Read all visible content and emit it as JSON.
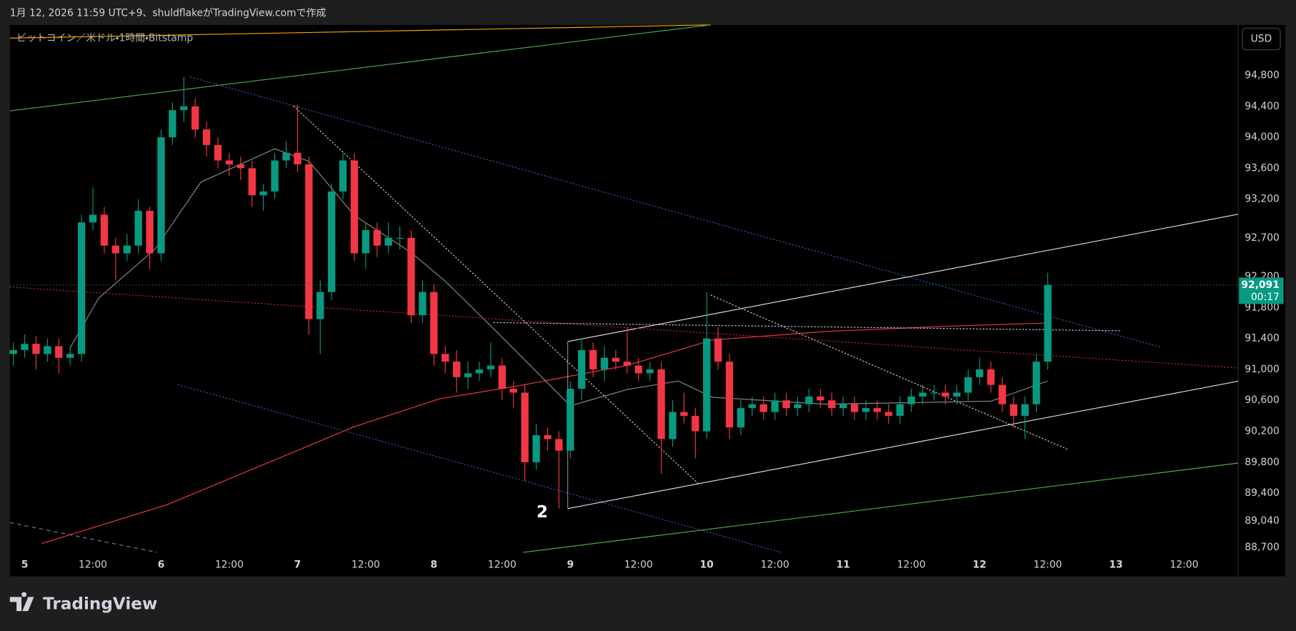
{
  "header": "1月 12, 2026 11:59 UTC+9、shuldflakeがTradingView.comで作成",
  "brand": "TradingView",
  "chart_data": {
    "type": "candlestick",
    "title": "ビットコイン／米ドル・1時間・Bitstamp",
    "currency": "USD",
    "annotation": "2",
    "last_price_label": "92,091",
    "countdown": "00:17",
    "up_color": "#089981",
    "down_color": "#f23645",
    "xlim": [
      -2.6,
      213.5
    ],
    "ylim": [
      88326,
      95452
    ],
    "xticks": [
      {
        "value": 0,
        "label": "5"
      },
      {
        "value": 12,
        "label": "12:00"
      },
      {
        "value": 24,
        "label": "6"
      },
      {
        "value": 36,
        "label": "12:00"
      },
      {
        "value": 48,
        "label": "7"
      },
      {
        "value": 60,
        "label": "12:00"
      },
      {
        "value": 72,
        "label": "8"
      },
      {
        "value": 84,
        "label": "12:00"
      },
      {
        "value": 96,
        "label": "9"
      },
      {
        "value": 108,
        "label": "12:00"
      },
      {
        "value": 120,
        "label": "10"
      },
      {
        "value": 132,
        "label": "12:00"
      },
      {
        "value": 144,
        "label": "11"
      },
      {
        "value": 156,
        "label": "12:00"
      },
      {
        "value": 168,
        "label": "12"
      },
      {
        "value": 180,
        "label": "12:00"
      },
      {
        "value": 192,
        "label": "13"
      },
      {
        "value": 204,
        "label": "12:00"
      }
    ],
    "yticks": [
      {
        "value": 94800,
        "label": "94,800"
      },
      {
        "value": 94400,
        "label": "94,400"
      },
      {
        "value": 94000,
        "label": "94,000"
      },
      {
        "value": 93600,
        "label": "93,600"
      },
      {
        "value": 93200,
        "label": "93,200"
      },
      {
        "value": 92700,
        "label": "92,700"
      },
      {
        "value": 92200,
        "label": "92,200"
      },
      {
        "value": 91800,
        "label": "91,800"
      },
      {
        "value": 91400,
        "label": "91,400"
      },
      {
        "value": 91000,
        "label": "91,000"
      },
      {
        "value": 90600,
        "label": "90,600"
      },
      {
        "value": 90200,
        "label": "90,200"
      },
      {
        "value": 89800,
        "label": "89,800"
      },
      {
        "value": 89400,
        "label": "89,400"
      },
      {
        "value": 89040,
        "label": "89,040"
      },
      {
        "value": 88700,
        "label": "88,700"
      }
    ],
    "x": [
      -2,
      0,
      2,
      4,
      6,
      8,
      10,
      12,
      14,
      16,
      18,
      20,
      22,
      24,
      26,
      28,
      30,
      32,
      34,
      36,
      38,
      40,
      42,
      44,
      46,
      48,
      50,
      52,
      54,
      56,
      58,
      60,
      62,
      64,
      66,
      68,
      70,
      72,
      74,
      76,
      78,
      80,
      82,
      84,
      86,
      88,
      90,
      92,
      94,
      96,
      98,
      100,
      102,
      104,
      106,
      108,
      110,
      112,
      114,
      116,
      118,
      120,
      122,
      124,
      126,
      128,
      130,
      132,
      134,
      136,
      138,
      140,
      142,
      144,
      146,
      148,
      150,
      152,
      154,
      156,
      158,
      160,
      162,
      164,
      166,
      168,
      170,
      172,
      174,
      176,
      178,
      180
    ],
    "open": [
      91200,
      91250,
      91330,
      91200,
      91300,
      91150,
      91200,
      92900,
      93000,
      92600,
      92500,
      92600,
      93050,
      92500,
      94000,
      94350,
      94400,
      94100,
      93900,
      93700,
      93650,
      93600,
      93250,
      93300,
      93700,
      93800,
      93650,
      91650,
      92000,
      93300,
      93700,
      92500,
      92800,
      92600,
      92700,
      92700,
      91700,
      92000,
      91200,
      91100,
      90900,
      90950,
      91000,
      91050,
      90750,
      90700,
      89800,
      90150,
      90100,
      89950,
      90750,
      91250,
      91000,
      91150,
      91100,
      91050,
      90950,
      91000,
      90100,
      90450,
      90400,
      90200,
      91400,
      91100,
      90250,
      90500,
      90550,
      90450,
      90600,
      90500,
      90550,
      90650,
      90600,
      90500,
      90550,
      90450,
      90500,
      90450,
      90400,
      90550,
      90650,
      90700,
      90700,
      90650,
      90700,
      90900,
      91000,
      90800,
      90550,
      90400,
      90550,
      91100
    ],
    "high": [
      91350,
      91450,
      91430,
      91400,
      91400,
      91300,
      93000,
      93350,
      93100,
      92700,
      92750,
      93200,
      93100,
      94100,
      94450,
      94780,
      94500,
      94200,
      94000,
      93800,
      93750,
      93700,
      93400,
      93800,
      93950,
      94420,
      93750,
      92150,
      93400,
      93800,
      93800,
      92900,
      92900,
      92900,
      92850,
      92800,
      92150,
      92100,
      91300,
      91250,
      91100,
      91100,
      91350,
      91150,
      90850,
      90800,
      90300,
      90250,
      90200,
      90850,
      91400,
      91350,
      91300,
      91250,
      91550,
      91150,
      91100,
      91100,
      90600,
      90700,
      90500,
      92000,
      91550,
      91200,
      90600,
      90650,
      90650,
      90700,
      90700,
      90650,
      90750,
      90750,
      90700,
      90650,
      90650,
      90600,
      90600,
      90550,
      90650,
      90750,
      90800,
      90800,
      90800,
      90800,
      91000,
      91150,
      91100,
      90900,
      90650,
      90650,
      91200,
      92250
    ],
    "low": [
      91050,
      91150,
      91000,
      91100,
      90950,
      91050,
      91100,
      92800,
      92500,
      92150,
      92400,
      92500,
      92300,
      92400,
      93900,
      94200,
      94000,
      93750,
      93600,
      93500,
      93450,
      93100,
      93050,
      93200,
      93600,
      93550,
      91450,
      91200,
      91900,
      93200,
      92400,
      92300,
      92450,
      92500,
      92550,
      91600,
      91600,
      91050,
      90950,
      90700,
      90750,
      90850,
      90900,
      90600,
      90500,
      89560,
      89700,
      89950,
      89200,
      89850,
      90600,
      90900,
      90850,
      91000,
      90950,
      90850,
      90850,
      89650,
      90000,
      90300,
      89850,
      90100,
      91000,
      90100,
      90150,
      90400,
      90350,
      90350,
      90400,
      90400,
      90450,
      90500,
      90400,
      90400,
      90350,
      90350,
      90350,
      90300,
      90300,
      90450,
      90550,
      90600,
      90550,
      90550,
      90600,
      90800,
      90700,
      90450,
      90250,
      90100,
      90450,
      91000
    ],
    "close": [
      91250,
      91330,
      91200,
      91300,
      91150,
      91200,
      92900,
      93000,
      92600,
      92500,
      92600,
      93050,
      92500,
      94000,
      94350,
      94400,
      94100,
      93900,
      93700,
      93650,
      93600,
      93250,
      93300,
      93700,
      93800,
      93650,
      91650,
      92000,
      93300,
      93700,
      92500,
      92800,
      92600,
      92700,
      92700,
      91700,
      92000,
      91200,
      91100,
      90900,
      90950,
      91000,
      91050,
      90750,
      90700,
      89800,
      90150,
      90100,
      89950,
      90750,
      91250,
      91000,
      91150,
      91100,
      91050,
      90950,
      91000,
      90100,
      90450,
      90400,
      90200,
      91400,
      91100,
      90250,
      90500,
      90550,
      90450,
      90600,
      90500,
      90550,
      90650,
      90600,
      90500,
      90550,
      90450,
      90500,
      90450,
      90400,
      90550,
      90650,
      90700,
      90700,
      90650,
      90700,
      90900,
      91000,
      90800,
      90550,
      90400,
      90550,
      91100,
      92091
    ],
    "overlays": [
      {
        "color": "#f23645",
        "x": [
          3,
          25,
          44,
          58,
          73,
          87,
          106,
          121,
          141,
          163,
          180
        ],
        "values": [
          88750,
          89250,
          89830,
          90260,
          90620,
          90790,
          91050,
          91380,
          91490,
          91560,
          91600
        ]
      },
      {
        "color": "#8a8a8a",
        "x": [
          8,
          13,
          23,
          31,
          44,
          50,
          58,
          68,
          74,
          83,
          96,
          106,
          115,
          121,
          141,
          170,
          180
        ],
        "values": [
          91280,
          91920,
          92560,
          93420,
          93850,
          93690,
          92990,
          92510,
          92140,
          91490,
          90530,
          90740,
          90850,
          90640,
          90550,
          90590,
          90850
        ]
      }
    ]
  }
}
